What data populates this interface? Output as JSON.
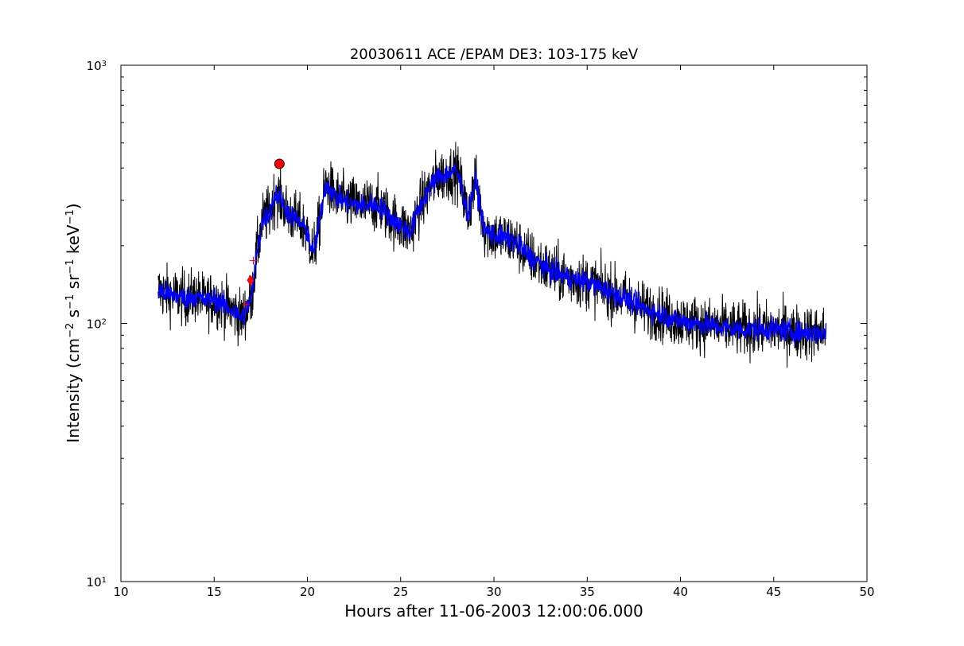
{
  "chart_data": {
    "type": "line",
    "title": "20030611 ACE /EPAM DE3: 103-175 keV",
    "xlabel": "Hours after 11-06-2003 12:00:06.000",
    "ylabel": {
      "prefix": "Intensity (cm",
      "exp1": "−2",
      "s": " s",
      "exp2": "−1",
      "sr": " sr",
      "exp3": "−1",
      "kev": " keV",
      "exp4": "−1",
      "suffix": ")"
    },
    "xlim": [
      10,
      50
    ],
    "ylim": [
      10,
      1000
    ],
    "yscale": "log",
    "grid": false,
    "x_ticks": [
      "10",
      "15",
      "20",
      "25",
      "30",
      "35",
      "40",
      "45",
      "50"
    ],
    "y_ticks": [
      {
        "base": "10",
        "exp": "1",
        "value": 10
      },
      {
        "base": "10",
        "exp": "2",
        "value": 100
      },
      {
        "base": "10",
        "exp": "3",
        "value": 1000
      }
    ],
    "series": [
      {
        "color": "#000000",
        "role": "raw",
        "x": [
          12.0,
          12.5,
          13.0,
          13.5,
          14.0,
          14.5,
          15.0,
          15.5,
          16.0,
          16.5,
          17.0,
          17.3,
          17.6,
          18.0,
          18.3,
          18.6,
          19.0,
          19.5,
          20.0,
          20.3,
          20.6,
          21.0,
          21.5,
          22.0,
          22.5,
          23.0,
          23.5,
          24.0,
          24.5,
          25.0,
          25.5,
          26.0,
          26.5,
          27.0,
          27.5,
          28.0,
          28.3,
          28.6,
          29.0,
          29.5,
          30.0,
          31.0,
          32.0,
          33.0,
          34.0,
          35.0,
          36.0,
          37.0,
          38.0,
          39.0,
          40.0,
          41.0,
          42.0,
          43.0,
          44.0,
          45.0,
          46.0,
          47.0,
          47.8
        ],
        "y": [
          135,
          130,
          128,
          125,
          128,
          122,
          125,
          118,
          112,
          105,
          125,
          190,
          250,
          270,
          320,
          300,
          265,
          250,
          225,
          185,
          235,
          350,
          310,
          295,
          290,
          285,
          290,
          280,
          255,
          240,
          225,
          280,
          330,
          370,
          380,
          390,
          330,
          260,
          360,
          230,
          220,
          210,
          180,
          160,
          150,
          145,
          135,
          125,
          115,
          108,
          102,
          100,
          97,
          95,
          95,
          95,
          93,
          92,
          92
        ],
        "noise": 0.22,
        "density": 2200
      },
      {
        "color": "#0000ff",
        "role": "smoothed",
        "x": [
          12.0,
          12.5,
          13.0,
          13.5,
          14.0,
          14.5,
          15.0,
          15.5,
          16.0,
          16.5,
          17.0,
          17.3,
          17.6,
          18.0,
          18.3,
          18.6,
          19.0,
          19.5,
          20.0,
          20.3,
          20.6,
          21.0,
          21.5,
          22.0,
          22.5,
          23.0,
          23.5,
          24.0,
          24.5,
          25.0,
          25.5,
          26.0,
          26.5,
          27.0,
          27.5,
          28.0,
          28.3,
          28.6,
          29.0,
          29.5,
          30.0,
          31.0,
          32.0,
          33.0,
          34.0,
          35.0,
          36.0,
          37.0,
          38.0,
          39.0,
          40.0,
          41.0,
          42.0,
          43.0,
          44.0,
          45.0,
          46.0,
          47.0,
          47.8
        ],
        "y": [
          135,
          130,
          128,
          125,
          128,
          122,
          125,
          118,
          112,
          105,
          125,
          190,
          250,
          270,
          320,
          300,
          265,
          250,
          225,
          185,
          235,
          350,
          310,
          295,
          290,
          285,
          290,
          280,
          255,
          240,
          225,
          280,
          330,
          370,
          380,
          390,
          330,
          260,
          360,
          230,
          220,
          210,
          180,
          160,
          150,
          145,
          135,
          125,
          115,
          108,
          102,
          100,
          97,
          95,
          95,
          95,
          93,
          92,
          92
        ],
        "noise": 0.09,
        "density": 1800
      }
    ],
    "markers": [
      {
        "x": 18.5,
        "y": 415,
        "shape": "circle",
        "color": "#ff0000"
      },
      {
        "x": 16.95,
        "y": 147,
        "shape": "diamond",
        "color": "#ff0000"
      },
      {
        "x": 17.1,
        "y": 175,
        "shape": "plus",
        "color": "#ff0000"
      },
      {
        "x": 16.7,
        "y": 118,
        "shape": "plus",
        "color": "#ff0000"
      }
    ]
  }
}
